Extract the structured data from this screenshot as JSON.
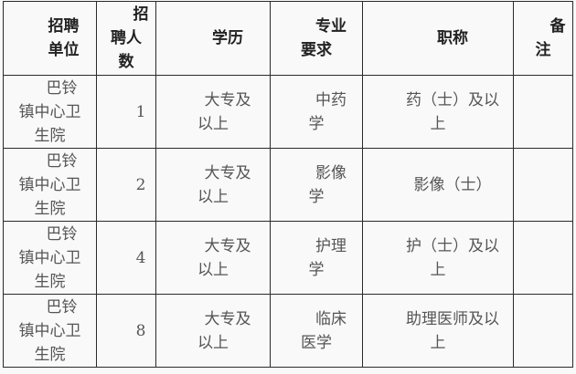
{
  "headers": [
    {
      "lines": [
        "招聘",
        "单位"
      ]
    },
    {
      "lines": [
        "招",
        "聘人",
        "数"
      ]
    },
    {
      "lines": [
        "学历"
      ]
    },
    {
      "lines": [
        "专业",
        "要求"
      ]
    },
    {
      "lines": [
        "职称"
      ]
    },
    {
      "lines": [
        "备",
        "注"
      ]
    }
  ],
  "rows": [
    {
      "unit": [
        "巴铃",
        "镇中心卫",
        "生院"
      ],
      "count": [
        "1"
      ],
      "education": [
        "大专及",
        "以上"
      ],
      "major": [
        "中药",
        "学"
      ],
      "title": [
        "药（士）及以",
        "上"
      ],
      "remark": []
    },
    {
      "unit": [
        "巴铃",
        "镇中心卫",
        "生院"
      ],
      "count": [
        "2"
      ],
      "education": [
        "大专及",
        "以上"
      ],
      "major": [
        "影像",
        "学"
      ],
      "title": [
        "影像（士）"
      ],
      "remark": []
    },
    {
      "unit": [
        "巴铃",
        "镇中心卫",
        "生院"
      ],
      "count": [
        "4"
      ],
      "education": [
        "大专及",
        "以上"
      ],
      "major": [
        "护理",
        "学"
      ],
      "title": [
        "护（士）及以",
        "上"
      ],
      "remark": []
    },
    {
      "unit": [
        "巴铃",
        "镇中心卫",
        "生院"
      ],
      "count": [
        "8"
      ],
      "education": [
        "大专及",
        "以上"
      ],
      "major": [
        "临床",
        "医学"
      ],
      "title": [
        "助理医师及以",
        "上"
      ],
      "remark": []
    }
  ]
}
